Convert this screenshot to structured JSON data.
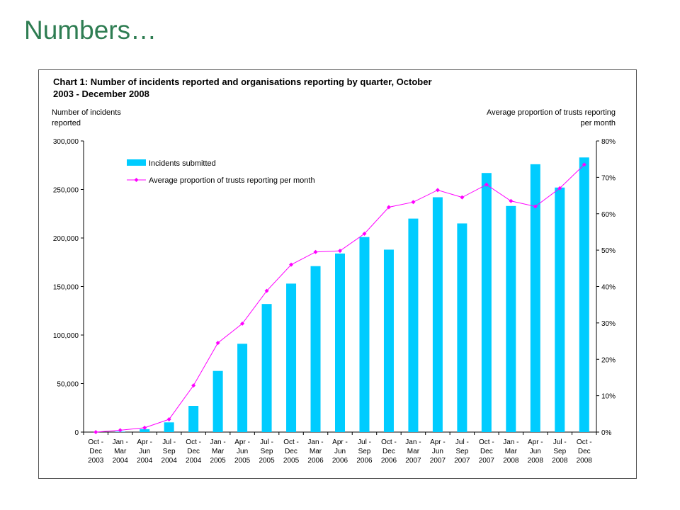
{
  "slide": {
    "title": "Numbers…"
  },
  "chart_data": {
    "type": "bar",
    "title_lines": [
      "Chart 1: Number of incidents reported and organisations reporting by quarter, October",
      "2003 - December 2008"
    ],
    "ylabel_left_lines": [
      "Number of incidents",
      "reported"
    ],
    "ylabel_right_lines": [
      "Average proportion of trusts reporting",
      "per month"
    ],
    "categories": [
      [
        "Oct -",
        "Dec",
        "2003"
      ],
      [
        "Jan -",
        "Mar",
        "2004"
      ],
      [
        "Apr -",
        "Jun",
        "2004"
      ],
      [
        "Jul -",
        "Sep",
        "2004"
      ],
      [
        "Oct -",
        "Dec",
        "2004"
      ],
      [
        "Jan -",
        "Mar",
        "2005"
      ],
      [
        "Apr -",
        "Jun",
        "2005"
      ],
      [
        "Jul -",
        "Sep",
        "2005"
      ],
      [
        "Oct -",
        "Dec",
        "2005"
      ],
      [
        "Jan -",
        "Mar",
        "2006"
      ],
      [
        "Apr -",
        "Jun",
        "2006"
      ],
      [
        "Jul -",
        "Sep",
        "2006"
      ],
      [
        "Oct -",
        "Dec",
        "2006"
      ],
      [
        "Jan -",
        "Mar",
        "2007"
      ],
      [
        "Apr -",
        "Jun",
        "2007"
      ],
      [
        "Jul -",
        "Sep",
        "2007"
      ],
      [
        "Oct -",
        "Dec",
        "2007"
      ],
      [
        "Jan -",
        "Mar",
        "2008"
      ],
      [
        "Apr -",
        "Jun",
        "2008"
      ],
      [
        "Jul -",
        "Sep",
        "2008"
      ],
      [
        "Oct -",
        "Dec",
        "2008"
      ]
    ],
    "series": [
      {
        "name": "Incidents submitted",
        "type": "bar",
        "axis": "left",
        "color": "#00ccff",
        "values": [
          0,
          500,
          3000,
          10000,
          27000,
          63000,
          91000,
          132000,
          153000,
          171000,
          184000,
          201000,
          188000,
          220000,
          242000,
          215000,
          267000,
          233000,
          276000,
          252000,
          283000
        ]
      },
      {
        "name": "Average proportion of trusts reporting per month",
        "type": "line",
        "axis": "right",
        "color": "#ff00ff",
        "values": [
          0,
          0.5,
          1.2,
          3.5,
          12.8,
          24.5,
          29.8,
          38.8,
          46.0,
          49.5,
          49.8,
          54.5,
          61.8,
          63.2,
          66.5,
          64.5,
          68.0,
          63.5,
          62.0,
          67.0,
          73.5
        ]
      }
    ],
    "yleft": {
      "lim": [
        0,
        300000
      ],
      "ticks": [
        "0",
        "50,000",
        "100,000",
        "150,000",
        "200,000",
        "250,000",
        "300,000"
      ]
    },
    "yright": {
      "lim": [
        0,
        80
      ],
      "ticks": [
        "0%",
        "10%",
        "20%",
        "30%",
        "40%",
        "50%",
        "60%",
        "70%",
        "80%"
      ]
    },
    "legend": "top-left",
    "grid": false
  }
}
